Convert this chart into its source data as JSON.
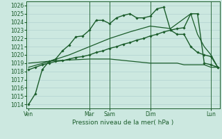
{
  "bg_color": "#cce8e0",
  "grid_color": "#aacccc",
  "line_color": "#1a5c2a",
  "xlabel": "Pression niveau de la mer( hPa )",
  "yticks": [
    1014,
    1015,
    1016,
    1017,
    1018,
    1019,
    1020,
    1021,
    1022,
    1023,
    1024,
    1025,
    1026
  ],
  "ylim": [
    1013.5,
    1026.5
  ],
  "xlim": [
    -0.3,
    28.3
  ],
  "xtick_positions": [
    0,
    9,
    12,
    18,
    27
  ],
  "xtick_labels": [
    "Ven",
    "Mar",
    "Sam",
    "Dim",
    "Lun"
  ],
  "line1_x": [
    0,
    1,
    2,
    3,
    4,
    5,
    6,
    7,
    8,
    9,
    10,
    11,
    12,
    13,
    14,
    15,
    16,
    17,
    18,
    19,
    20,
    21,
    22,
    23,
    24,
    25,
    26,
    27,
    28
  ],
  "line1_y": [
    1014.0,
    1015.3,
    1018.2,
    1019.2,
    1019.5,
    1020.5,
    1021.2,
    1022.2,
    1022.3,
    1023.0,
    1024.2,
    1024.2,
    1023.8,
    1024.5,
    1024.8,
    1025.0,
    1024.5,
    1024.5,
    1024.7,
    1025.6,
    1025.8,
    1023.0,
    1022.5,
    1022.5,
    1021.0,
    1020.3,
    1020.0,
    1019.8,
    1018.5
  ],
  "line2_x": [
    0,
    1,
    2,
    3,
    4,
    5,
    6,
    7,
    8,
    9,
    10,
    11,
    12,
    13,
    14,
    15,
    16,
    17,
    18,
    19,
    20,
    21,
    22,
    23,
    24,
    25,
    26,
    27,
    28
  ],
  "line2_y": [
    1018.2,
    1018.5,
    1018.8,
    1019.0,
    1019.2,
    1019.3,
    1019.5,
    1019.7,
    1019.8,
    1020.0,
    1020.3,
    1020.5,
    1020.8,
    1021.0,
    1021.3,
    1021.5,
    1021.8,
    1022.0,
    1022.3,
    1022.5,
    1022.8,
    1023.0,
    1023.2,
    1023.3,
    1025.0,
    1025.0,
    1019.0,
    1018.8,
    1018.5
  ],
  "line3_x": [
    0,
    4,
    9,
    12,
    18,
    20,
    21,
    22,
    23,
    24,
    25,
    26,
    27,
    28
  ],
  "line3_y": [
    1019.0,
    1019.3,
    1019.5,
    1019.5,
    1019.0,
    1019.0,
    1019.0,
    1019.0,
    1018.8,
    1018.8,
    1018.8,
    1018.8,
    1018.5,
    1018.5
  ],
  "line4_x": [
    0,
    3,
    6,
    9,
    12,
    15,
    18,
    21,
    24,
    25,
    26,
    27,
    28
  ],
  "line4_y": [
    1018.5,
    1019.2,
    1020.0,
    1021.0,
    1022.0,
    1022.8,
    1023.5,
    1023.2,
    1025.0,
    1022.5,
    1021.0,
    1020.0,
    1018.5
  ],
  "vline_x": [
    9,
    12,
    18,
    27
  ]
}
